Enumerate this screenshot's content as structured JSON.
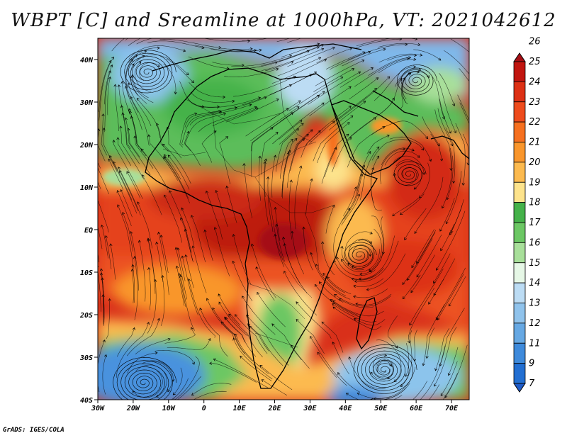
{
  "title": "WBPT [C] and Sreamline at 1000hPa, VT: 2021042612",
  "credit": "GrADS: IGES/COLA",
  "map": {
    "lon_range": [
      -30,
      75
    ],
    "lat_range": [
      -40,
      45
    ],
    "lon_ticks": [
      {
        "value": -30,
        "label": "30W"
      },
      {
        "value": -20,
        "label": "20W"
      },
      {
        "value": -10,
        "label": "10W"
      },
      {
        "value": 0,
        "label": "0"
      },
      {
        "value": 10,
        "label": "10E"
      },
      {
        "value": 20,
        "label": "20E"
      },
      {
        "value": 30,
        "label": "30E"
      },
      {
        "value": 40,
        "label": "40E"
      },
      {
        "value": 50,
        "label": "50E"
      },
      {
        "value": 60,
        "label": "60E"
      },
      {
        "value": 70,
        "label": "70E"
      }
    ],
    "lat_ticks": [
      {
        "value": 40,
        "label": "40N"
      },
      {
        "value": 30,
        "label": "30N"
      },
      {
        "value": 20,
        "label": "20N"
      },
      {
        "value": 10,
        "label": "10N"
      },
      {
        "value": 0,
        "label": "EQ"
      },
      {
        "value": -10,
        "label": "10S"
      },
      {
        "value": -20,
        "label": "20S"
      },
      {
        "value": -30,
        "label": "30S"
      },
      {
        "value": -40,
        "label": "40S"
      }
    ],
    "vortices": [
      {
        "lon": -16,
        "lat": 37,
        "turns": 7
      },
      {
        "lon": -17,
        "lat": -36,
        "turns": 8
      },
      {
        "lon": 51,
        "lat": -33,
        "turns": 8
      },
      {
        "lon": 60,
        "lat": 35,
        "turns": 5
      },
      {
        "lon": 58,
        "lat": 13,
        "turns": 4
      },
      {
        "lon": 44,
        "lat": -6,
        "turns": 4
      }
    ]
  },
  "colorbar": {
    "levels": [
      {
        "label": "26",
        "color": "#a50f15"
      },
      {
        "label": "25",
        "color": "#c1150f"
      },
      {
        "label": "24",
        "color": "#dd3014"
      },
      {
        "label": "23",
        "color": "#ee4b1c"
      },
      {
        "label": "22",
        "color": "#f6701f"
      },
      {
        "label": "21",
        "color": "#f9962c"
      },
      {
        "label": "20",
        "color": "#fcba4f"
      },
      {
        "label": "19",
        "color": "#fde38c"
      },
      {
        "label": "18",
        "color": "#45b24a"
      },
      {
        "label": "17",
        "color": "#6cc764"
      },
      {
        "label": "16",
        "color": "#a8df9a"
      },
      {
        "label": "15",
        "color": "#e6f7e6"
      },
      {
        "label": "14",
        "color": "#bcdcf4"
      },
      {
        "label": "13",
        "color": "#90c3ec"
      },
      {
        "label": "12",
        "color": "#66a8e3"
      },
      {
        "label": "11",
        "color": "#3e8adb"
      },
      {
        "label": "9",
        "color": "#226fd2"
      },
      {
        "label": "7",
        "color": "#1e5bc8"
      }
    ]
  }
}
